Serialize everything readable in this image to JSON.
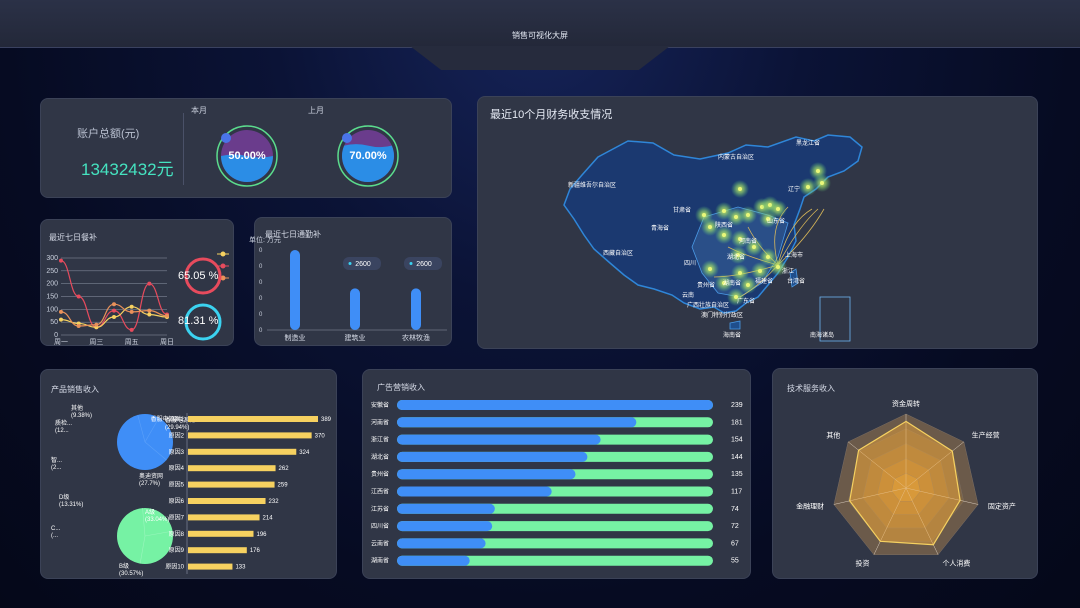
{
  "header": {
    "title": "销售可视化大屏"
  },
  "account": {
    "label": "账户总额(元)",
    "amount": "13432432元",
    "this_month_label": "本月",
    "last_month_label": "上月",
    "this_month_pct": "50.00%",
    "last_month_pct": "70.00%",
    "this_month_value": 0.5,
    "last_month_value": 0.7
  },
  "meal": {
    "title": "最近七日餐补",
    "yticks": [
      "300",
      "250",
      "200",
      "150",
      "100",
      "50",
      "0"
    ],
    "xticks": [
      "周一",
      "周三",
      "周五",
      "周日"
    ],
    "ring1": "65.05 %",
    "ring2": "81.31 %",
    "ring1_value": 0.6505,
    "ring2_value": 0.8131
  },
  "commute": {
    "title": "最近七日通勤补",
    "unit": "单位: 万元",
    "categories": [
      "制造业",
      "建筑业",
      "农林牧渔"
    ],
    "values": [
      100,
      52,
      52
    ],
    "tooltip1": "2600",
    "tooltip2": "2600"
  },
  "map": {
    "title": "最近10个月财务收支情况",
    "labels": {
      "heilongjiang": "黑龙江省",
      "neimenggu": "内蒙古自治区",
      "xinjiang": "新疆维吾尔自治区",
      "gansu": "甘肃省",
      "qinghai": "青海省",
      "xizang": "西藏自治区",
      "sichuan": "四川",
      "yunnan": "云南",
      "guangxi": "广西壮族自治区",
      "hainan": "海南省",
      "nanhai": "南海诸岛",
      "shandong": "山东省",
      "shanghai": "上海市",
      "zhejiang": "浙江",
      "taiwan": "台湾省",
      "hubei": "湖北省",
      "hunan": "湖南省",
      "shaanxi": "陕西省",
      "henan": "河南省",
      "fujian": "福建省",
      "guizhou": "贵州省",
      "guangdong": "广东省",
      "aomen": "澳门特别行政区",
      "liaoning": "辽宁"
    }
  },
  "products": {
    "title": "产品销售收入",
    "pie1_labels": [
      "其他\n(9.38%)",
      "质检...\n(12...",
      "智...\n(2...",
      "香服电源剧1\n(29.94%)",
      "奥迪资网\n(27.7%)"
    ],
    "pie2_labels": [
      "D级\n(13.31%)",
      "C...\n(...",
      "A级\n(33.04%)",
      "B级\n(30.57%)"
    ],
    "bar_categories": [
      "香服电源剧1",
      "原因2",
      "原因3",
      "原因4",
      "原因5",
      "原因6",
      "原因7",
      "原因8",
      "原因9",
      "原因10"
    ],
    "bar_values": [
      389,
      370,
      324,
      262,
      259,
      232,
      214,
      196,
      176,
      133
    ]
  },
  "ads": {
    "title": "广告营销收入",
    "categories": [
      "安徽省",
      "河南省",
      "浙江省",
      "湖北省",
      "贵州省",
      "江西省",
      "江苏省",
      "四川省",
      "云南省",
      "湖南省"
    ],
    "values": [
      239,
      181,
      154,
      144,
      135,
      117,
      74,
      72,
      67,
      55
    ],
    "max": 239
  },
  "tech": {
    "title": "技术服务收入",
    "axes": [
      "资金周转",
      "生产经营",
      "固定资产",
      "个人消费",
      "投资",
      "金融理财",
      "其他"
    ]
  },
  "colors": {
    "panel": "#303646",
    "accent_blue": "#3f8ef7",
    "accent_green": "#76f2a4",
    "accent_yellow": "#f6d160",
    "accent_red": "#e74b5d",
    "accent_cyan": "#3bd2f0"
  },
  "chart_data": [
    {
      "type": "line",
      "title": "最近七日餐补",
      "categories": [
        "周一",
        "周二",
        "周三",
        "周四",
        "周五",
        "周六",
        "周日"
      ],
      "ylim": [
        0,
        300
      ],
      "series": [
        {
          "values": [
            290,
            150,
            30,
            95,
            20,
            200,
            80
          ]
        },
        {
          "values": [
            60,
            45,
            30,
            70,
            110,
            80,
            70
          ]
        },
        {
          "values": [
            90,
            35,
            40,
            120,
            90,
            95,
            75
          ]
        }
      ]
    },
    {
      "type": "bar",
      "title": "最近七日通勤补",
      "categories": [
        "制造业",
        "建筑业",
        "农林牧渔"
      ],
      "values": [
        100,
        52,
        52
      ]
    },
    {
      "type": "bar",
      "title": "产品销售收入",
      "categories": [
        "香服电源剧1",
        "原因2",
        "原因3",
        "原因4",
        "原因5",
        "原因6",
        "原因7",
        "原因8",
        "原因9",
        "原因10"
      ],
      "values": [
        389,
        370,
        324,
        262,
        259,
        232,
        214,
        196,
        176,
        133
      ]
    },
    {
      "type": "bar",
      "title": "广告营销收入",
      "categories": [
        "安徽省",
        "河南省",
        "浙江省",
        "湖北省",
        "贵州省",
        "江西省",
        "江苏省",
        "四川省",
        "云南省",
        "湖南省"
      ],
      "values": [
        239,
        181,
        154,
        144,
        135,
        117,
        74,
        72,
        67,
        55
      ]
    },
    {
      "type": "pie",
      "title": "产品销售收入",
      "categories": [
        "其他",
        "质检...",
        "智...",
        "香服电源剧1",
        "奥迪资网"
      ],
      "values": [
        9.38,
        12,
        21,
        29.94,
        27.7
      ]
    },
    {
      "type": "pie",
      "categories": [
        "D级",
        "C...",
        "A级",
        "B级"
      ],
      "values": [
        13.31,
        23.08,
        33.04,
        30.57
      ]
    }
  ]
}
